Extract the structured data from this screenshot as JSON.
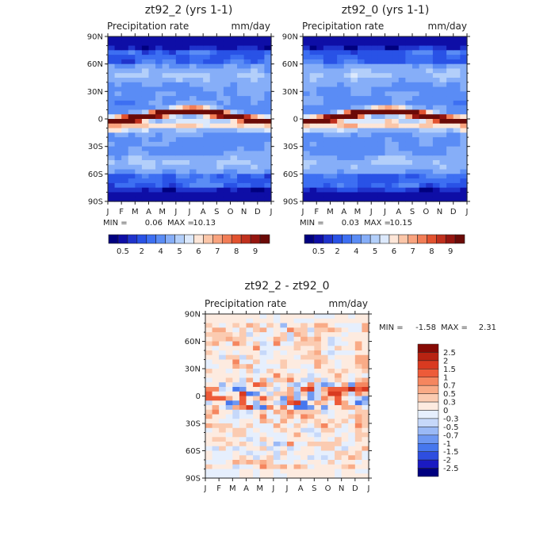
{
  "colors": {
    "precip_scale": [
      "#00007f",
      "#0e0ea6",
      "#1f33cc",
      "#2952e6",
      "#3d6ff2",
      "#5a8cf5",
      "#86aef8",
      "#b3cffa",
      "#dce9fc",
      "#fde6d8",
      "#fbc6a8",
      "#f9a37e",
      "#f27d56",
      "#e2522f",
      "#c0301d",
      "#95150f",
      "#6b0a07"
    ],
    "diff_scale": [
      "#00007f",
      "#1a1ac2",
      "#2e4ee0",
      "#4677ee",
      "#6d97f2",
      "#9ab9f6",
      "#c6d8fa",
      "#e6effd",
      "#fdebe0",
      "#fbcbb1",
      "#f9ab87",
      "#f5865f",
      "#ed5b39",
      "#d93a20",
      "#b82312",
      "#860a05"
    ],
    "axis": "#222222",
    "background": "#ffffff"
  },
  "chart_data": [
    {
      "type": "heatmap",
      "title": "zt92_2 (yrs 1-1)",
      "subtitle_left": "Precipitation rate",
      "subtitle_right": "mm/day",
      "x_ticks": [
        "J",
        "F",
        "M",
        "A",
        "M",
        "J",
        "J",
        "A",
        "S",
        "O",
        "N",
        "D",
        "J"
      ],
      "y_ticks": [
        "90N",
        "60N",
        "30N",
        "0",
        "30S",
        "60S",
        "90S"
      ],
      "ylim": [
        -90,
        90
      ],
      "min_label": "MIN =",
      "min_value": "0.06",
      "max_label": "MAX =",
      "max_value": "10.13",
      "colorbar_labels": [
        "0.5",
        "2",
        "4",
        "5",
        "6",
        "7",
        "8",
        "9"
      ],
      "variant": 0
    },
    {
      "type": "heatmap",
      "title": "zt92_0 (yrs 1-1)",
      "subtitle_left": "Precipitation rate",
      "subtitle_right": "mm/day",
      "x_ticks": [
        "J",
        "F",
        "M",
        "A",
        "M",
        "J",
        "J",
        "A",
        "S",
        "O",
        "N",
        "D",
        "J"
      ],
      "y_ticks": [
        "90N",
        "60N",
        "30N",
        "0",
        "30S",
        "60S",
        "90S"
      ],
      "ylim": [
        -90,
        90
      ],
      "min_label": "MIN =",
      "min_value": "0.03",
      "max_label": "MAX =",
      "max_value": "10.15",
      "colorbar_labels": [
        "0.5",
        "2",
        "4",
        "5",
        "6",
        "7",
        "8",
        "9"
      ],
      "variant": 1
    },
    {
      "type": "heatmap",
      "title": "zt92_2 - zt92_0",
      "subtitle_left": "Precipitation rate",
      "subtitle_right": "mm/day",
      "x_ticks": [
        "J",
        "F",
        "M",
        "A",
        "M",
        "J",
        "J",
        "A",
        "S",
        "O",
        "N",
        "D",
        "J"
      ],
      "y_ticks": [
        "90N",
        "60N",
        "30N",
        "0",
        "30S",
        "60S",
        "90S"
      ],
      "ylim": [
        -90,
        90
      ],
      "min_label": "MIN =",
      "min_value": "-1.58",
      "max_label": "MAX =",
      "max_value": "2.31",
      "colorbar_labels": [
        "2.5",
        "2",
        "1.5",
        "1",
        "0.7",
        "0.5",
        "0.3",
        "0",
        "-0.3",
        "-0.5",
        "-0.7",
        "-1",
        "-1.5",
        "-2",
        "-2.5"
      ]
    }
  ]
}
